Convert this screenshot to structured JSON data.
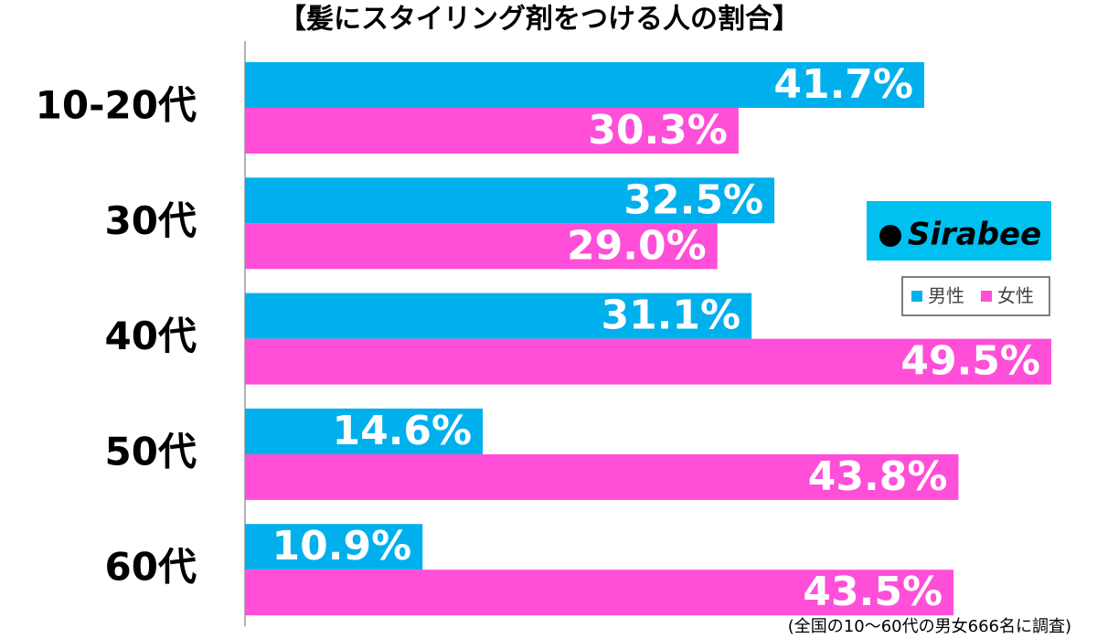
{
  "chart_data": {
    "type": "hbar",
    "title": "【髪にスタイリング剤をつける人の割合】",
    "categories": [
      "10-20代",
      "30代",
      "40代",
      "50代",
      "60代"
    ],
    "series": [
      {
        "name": "男性",
        "color": "#00b0ec",
        "values": [
          41.7,
          32.5,
          31.1,
          14.6,
          10.9
        ],
        "value_labels": [
          "41.7%",
          "32.5%",
          "31.1%",
          "14.6%",
          "10.9%"
        ]
      },
      {
        "name": "女性",
        "color": "#ff4fd8",
        "values": [
          30.3,
          29.0,
          49.5,
          43.8,
          43.5
        ],
        "value_labels": [
          "30.3%",
          "29.0%",
          "49.5%",
          "43.8%",
          "43.5%"
        ]
      }
    ],
    "xlim": [
      0,
      49.5
    ],
    "logo": "Sirabee",
    "footnote": "(全国の10〜60代の男女666名に調査)"
  }
}
